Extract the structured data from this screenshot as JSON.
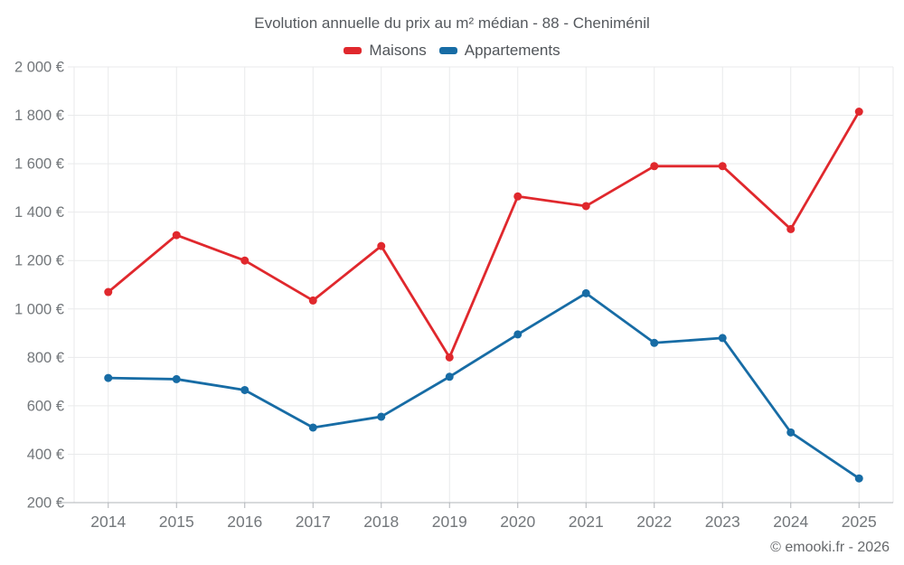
{
  "title": "Evolution annuelle du prix au m² médian - 88 - Cheniménil",
  "footer": "© emooki.fr - 2026",
  "colors": {
    "maisons": "#e0282d",
    "appartements": "#176ca5",
    "grid": "#e9eaeb",
    "axis": "#b0b4b8",
    "tick_text": "#73777b",
    "background": "#ffffff"
  },
  "chart_data": {
    "type": "line",
    "title": "Evolution annuelle du prix au m² médian - 88 - Cheniménil",
    "categories": [
      "2014",
      "2015",
      "2016",
      "2017",
      "2018",
      "2019",
      "2020",
      "2021",
      "2022",
      "2023",
      "2024",
      "2025"
    ],
    "series": [
      {
        "name": "Maisons",
        "color": "#e0282d",
        "values": [
          1070,
          1305,
          1200,
          1035,
          1260,
          800,
          1465,
          1425,
          1590,
          1590,
          1330,
          1815
        ]
      },
      {
        "name": "Appartements",
        "color": "#176ca5",
        "values": [
          715,
          710,
          665,
          510,
          555,
          720,
          895,
          1065,
          860,
          880,
          490,
          300
        ]
      }
    ],
    "xlabel": "",
    "ylabel": "",
    "ylim": [
      200,
      2000
    ],
    "y_tick_step": 200,
    "y_tick_labels": [
      "200 €",
      "400 €",
      "600 €",
      "800 €",
      "1 000 €",
      "1 200 €",
      "1 400 €",
      "1 600 €",
      "1 800 €",
      "2 000 €"
    ],
    "grid": true,
    "legend_position": "top",
    "unit": "€"
  }
}
